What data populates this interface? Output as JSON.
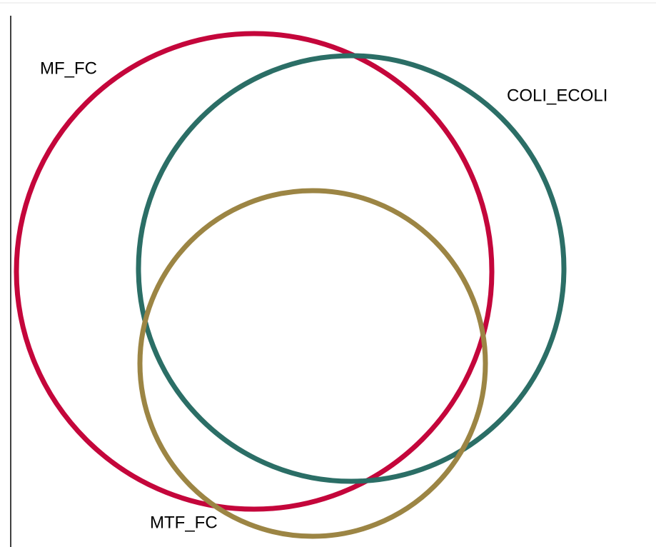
{
  "nodes": [
    {
      "label": "MF_FC",
      "color": "#c4063b"
    },
    {
      "label": "COLI_ECOLI",
      "color": "#2b6e66"
    },
    {
      "label": "MTF_FC",
      "color": "#9c8544"
    }
  ]
}
